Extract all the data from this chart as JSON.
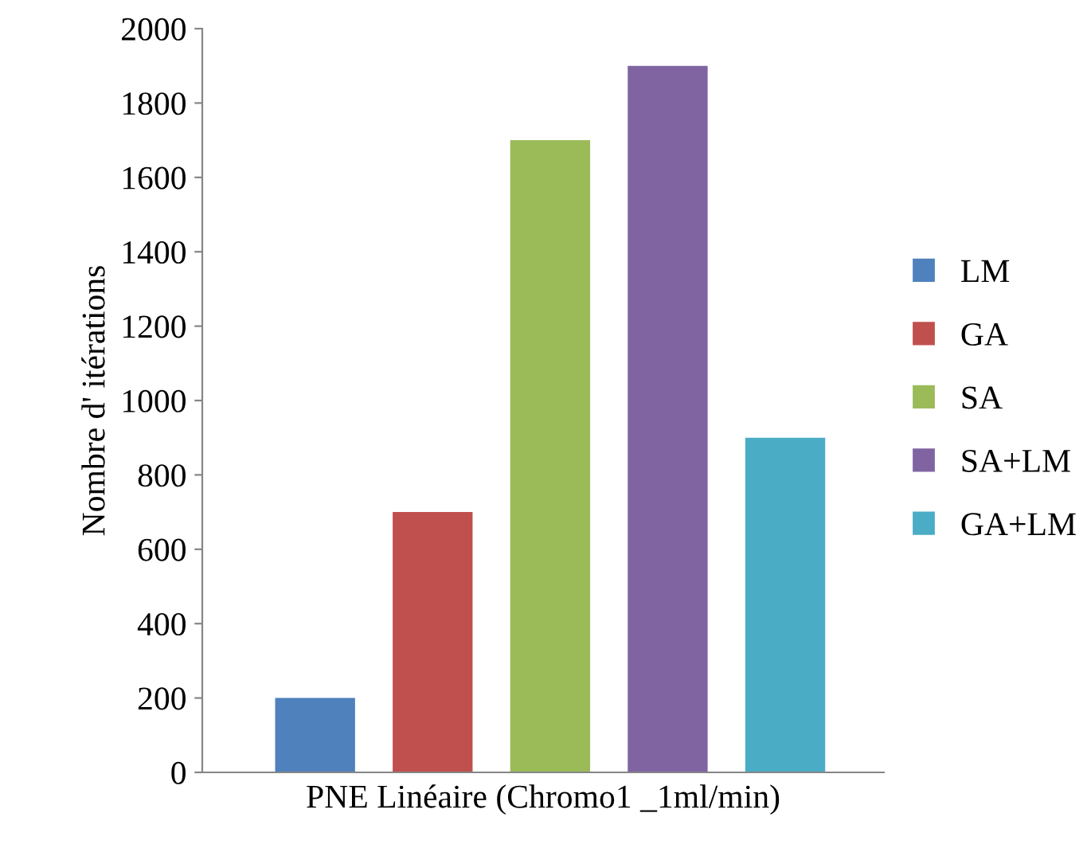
{
  "chart_data": {
    "type": "bar",
    "ylabel": "Nombre d' itérations",
    "xlabel": "PNE Linéaire (Chromo1 _1ml/min)",
    "categories": [
      null,
      null,
      null,
      null,
      null
    ],
    "series": [
      {
        "name": "LM",
        "color": "#4f81bd",
        "values": [
          200,
          null,
          null,
          null,
          null
        ]
      },
      {
        "name": "GA",
        "color": "#c0504d",
        "values": [
          null,
          700,
          null,
          null,
          null
        ]
      },
      {
        "name": "SA",
        "color": "#9bbb59",
        "values": [
          null,
          null,
          1700,
          null,
          null
        ]
      },
      {
        "name": "SA+LM",
        "color": "#8064a2",
        "values": [
          null,
          null,
          null,
          1900,
          null
        ]
      },
      {
        "name": "GA+LM",
        "color": "#4bacc6",
        "values": [
          null,
          null,
          null,
          null,
          900
        ]
      }
    ],
    "ylim": [
      0,
      2000
    ],
    "yticks": [
      0,
      200,
      400,
      600,
      800,
      1000,
      1200,
      1400,
      1600,
      1800,
      2000
    ],
    "grid": false,
    "legend": "right"
  }
}
